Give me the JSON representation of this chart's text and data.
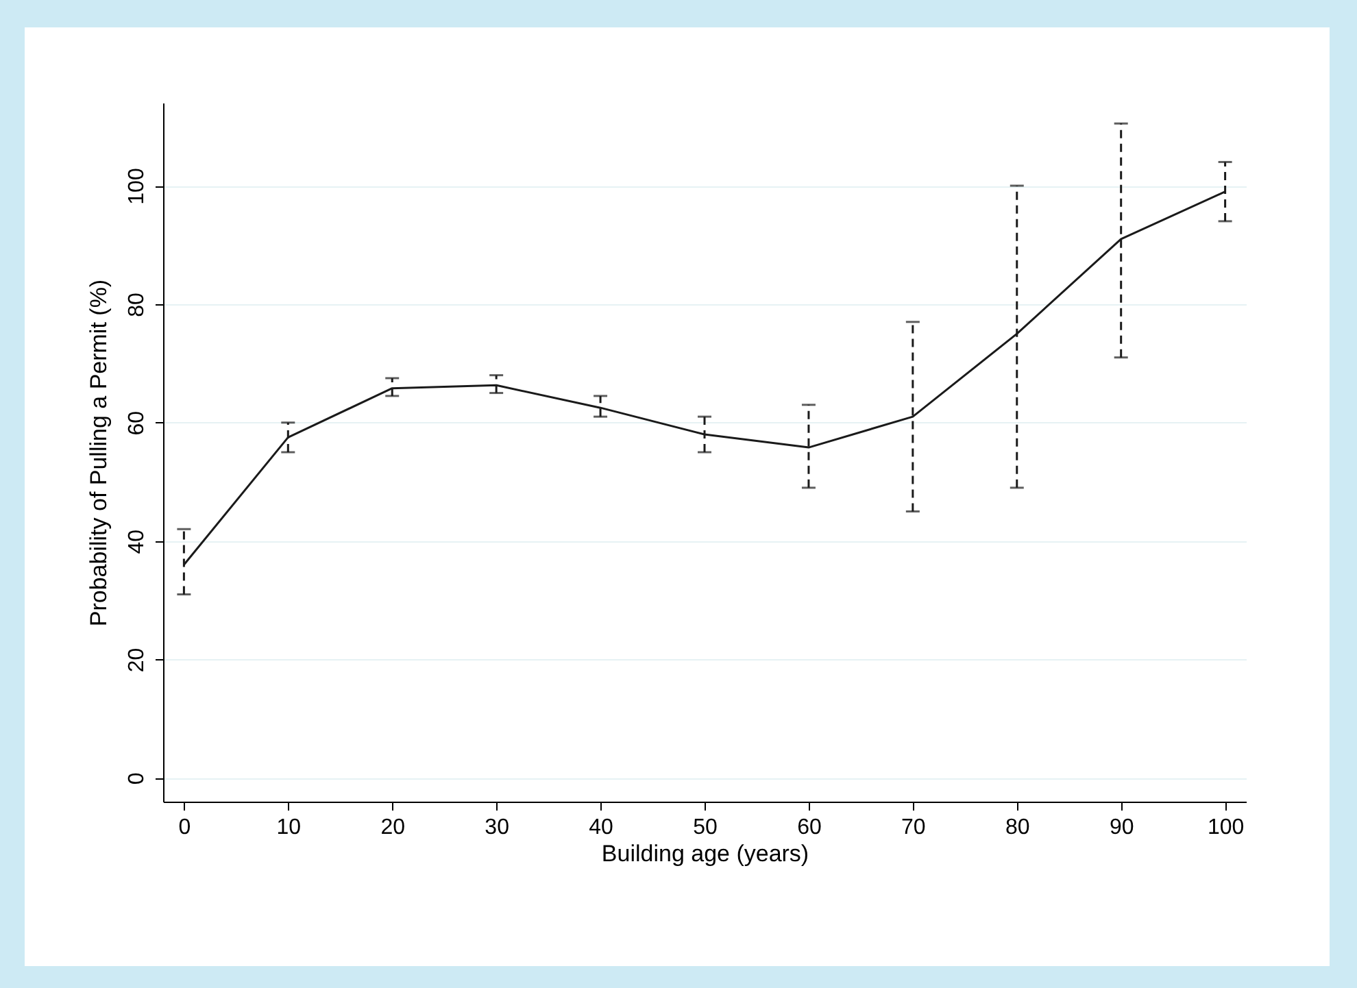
{
  "chart_data": {
    "type": "line",
    "xlabel": "Building age (years)",
    "ylabel": "Probability of Pulling a Permit (%)",
    "x": [
      0,
      10,
      20,
      30,
      40,
      50,
      60,
      70,
      80,
      90,
      100
    ],
    "series": [
      {
        "color": "#1a1a1a",
        "values": [
          36,
          57.5,
          65.8,
          66.3,
          62.5,
          58,
          55.8,
          61,
          75,
          91,
          99
        ],
        "errors": [
          [
            31,
            42
          ],
          [
            55,
            60
          ],
          [
            64.5,
            67.5
          ],
          [
            65,
            68
          ],
          [
            61,
            64.5
          ],
          [
            55,
            61
          ],
          [
            49,
            63
          ],
          [
            45,
            77
          ],
          [
            49,
            100
          ],
          [
            71,
            110.5
          ],
          [
            94,
            104
          ]
        ]
      }
    ],
    "xlim": [
      -2,
      102
    ],
    "ylim": [
      -4,
      114
    ],
    "xticks": [
      0,
      10,
      20,
      30,
      40,
      50,
      60,
      70,
      80,
      90,
      100
    ],
    "yticks": [
      0,
      20,
      40,
      60,
      80,
      100
    ],
    "grid": "y",
    "marker": "none",
    "line_style": "solid"
  }
}
